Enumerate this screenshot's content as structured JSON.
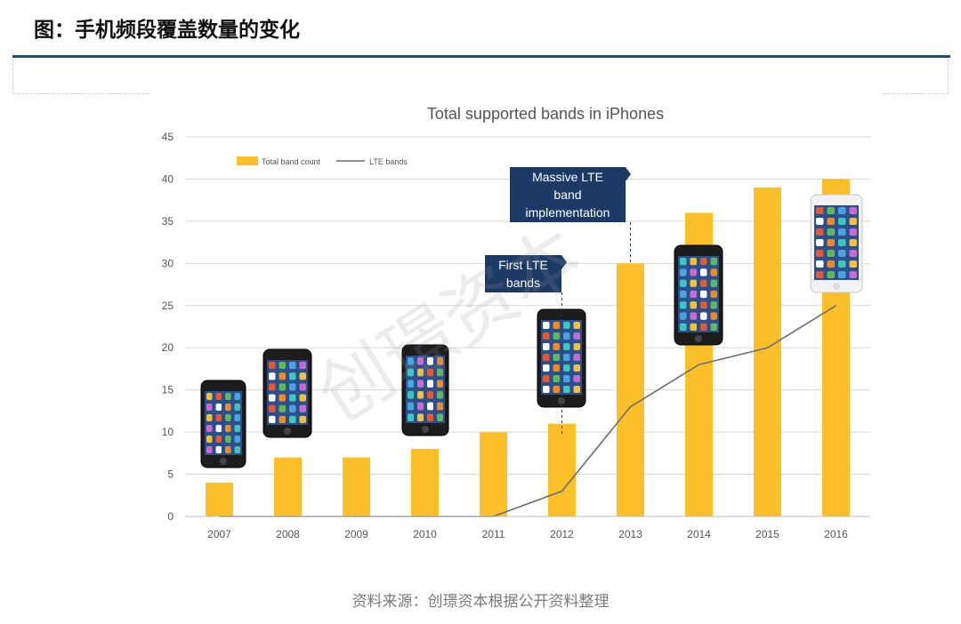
{
  "page": {
    "header": "图：手机频段覆盖数量的变化",
    "source": "资料来源：创璟资本根据公开资料整理",
    "watermark": "创璟资本"
  },
  "chart_data": {
    "type": "bar",
    "title": "Total supported bands in iPhones",
    "xlabel": "",
    "ylabel": "",
    "categories": [
      "2007",
      "2008",
      "2009",
      "2010",
      "2011",
      "2012",
      "2013",
      "2014",
      "2015",
      "2016"
    ],
    "ylim": [
      0,
      45
    ],
    "yticks": [
      0,
      5,
      10,
      15,
      20,
      25,
      30,
      35,
      40,
      45
    ],
    "grid": true,
    "legend_position": "top-left",
    "series": [
      {
        "name": "Total band count",
        "type": "bar",
        "color": "#fbbf2a",
        "values": [
          4,
          7,
          7,
          8,
          10,
          11,
          30,
          36,
          39,
          40
        ]
      },
      {
        "name": "LTE bands",
        "type": "line",
        "color": "#6d6d6d",
        "values": [
          0,
          0,
          0,
          0,
          0,
          3,
          13,
          18,
          20,
          25
        ]
      }
    ],
    "annotations": [
      {
        "text": "First LTE\nbands",
        "category": "2012"
      },
      {
        "text": "Massive LTE\nband\nimplementation",
        "category": "2013"
      }
    ]
  }
}
